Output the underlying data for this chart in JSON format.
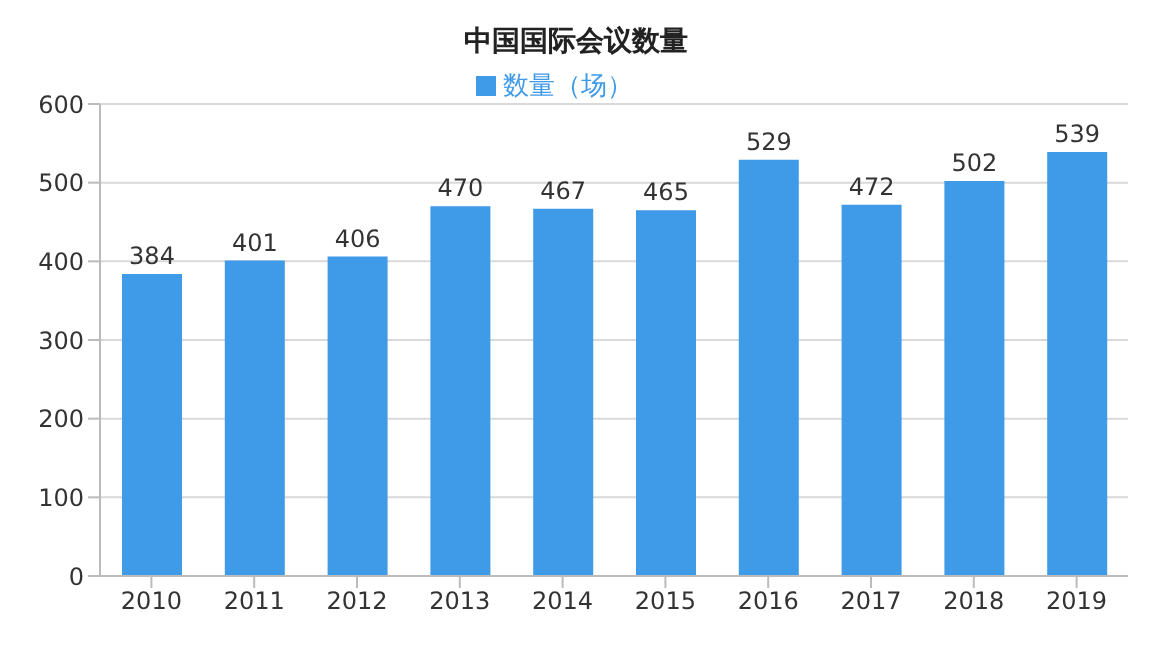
{
  "chart_data": {
    "type": "bar",
    "title": "中国国际会议数量",
    "categories": [
      "2010",
      "2011",
      "2012",
      "2013",
      "2014",
      "2015",
      "2016",
      "2017",
      "2018",
      "2019"
    ],
    "series": [
      {
        "name": "数量（场）",
        "color": "#3f9ae8",
        "values": [
          384,
          401,
          406,
          470,
          467,
          465,
          529,
          472,
          502,
          539
        ]
      }
    ],
    "ylim": [
      0,
      600
    ],
    "yticks": [
      0,
      100,
      200,
      300,
      400,
      500,
      600
    ],
    "grid": "y",
    "legend": "top",
    "data_labels": true
  }
}
